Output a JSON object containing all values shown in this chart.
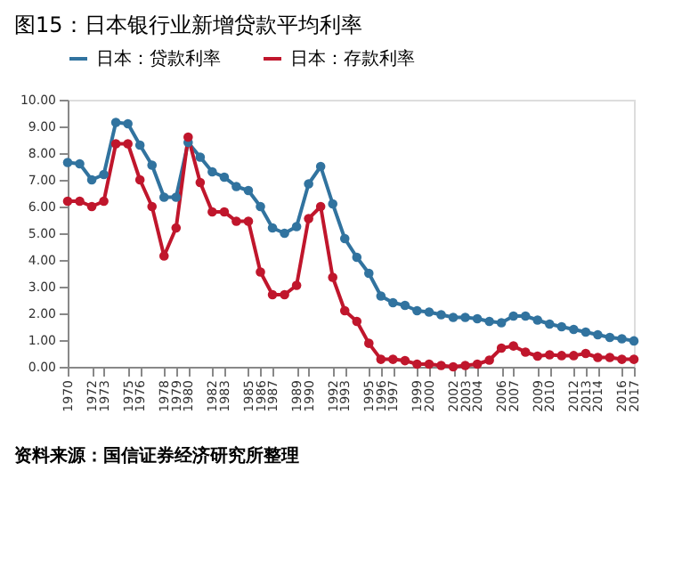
{
  "chart_data": {
    "type": "line",
    "title": "图15：日本银行业新增贷款平均利率",
    "x": [
      1970,
      1971,
      1972,
      1973,
      1974,
      1975,
      1976,
      1977,
      1978,
      1979,
      1980,
      1981,
      1982,
      1983,
      1984,
      1985,
      1986,
      1987,
      1988,
      1989,
      1990,
      1991,
      1992,
      1993,
      1994,
      1995,
      1996,
      1997,
      1998,
      1999,
      2000,
      2001,
      2002,
      2003,
      2004,
      2005,
      2006,
      2007,
      2008,
      2009,
      2010,
      2011,
      2012,
      2013,
      2014,
      2015,
      2016,
      2017
    ],
    "series": [
      {
        "name": "日本：贷款利率",
        "color": "#31739f",
        "values": [
          7.65,
          7.6,
          7.0,
          7.2,
          9.15,
          9.1,
          8.3,
          7.55,
          6.35,
          6.35,
          8.4,
          7.85,
          7.3,
          7.1,
          6.75,
          6.6,
          6.0,
          5.2,
          5.0,
          5.25,
          6.85,
          7.5,
          6.1,
          4.8,
          4.1,
          3.5,
          2.65,
          2.4,
          2.3,
          2.1,
          2.05,
          1.95,
          1.85,
          1.85,
          1.8,
          1.7,
          1.65,
          1.9,
          1.9,
          1.75,
          1.6,
          1.5,
          1.4,
          1.3,
          1.2,
          1.1,
          1.05,
          0.97
        ]
      },
      {
        "name": "日本：存款利率",
        "color": "#c0162c",
        "values": [
          6.2,
          6.2,
          6.0,
          6.2,
          8.35,
          8.35,
          7.0,
          6.0,
          4.15,
          5.2,
          8.6,
          6.9,
          5.8,
          5.8,
          5.45,
          5.45,
          3.55,
          2.7,
          2.7,
          3.05,
          5.55,
          6.0,
          3.35,
          2.1,
          1.7,
          0.88,
          0.28,
          0.28,
          0.23,
          0.1,
          0.1,
          0.05,
          0.0,
          0.05,
          0.1,
          0.25,
          0.7,
          0.78,
          0.55,
          0.4,
          0.45,
          0.42,
          0.42,
          0.5,
          0.35,
          0.35,
          0.28,
          0.28
        ]
      }
    ],
    "xlim": [
      1970,
      2017
    ],
    "xticks": [
      1970,
      1972,
      1973,
      1975,
      1976,
      1978,
      1979,
      1980,
      1982,
      1983,
      1985,
      1986,
      1987,
      1989,
      1990,
      1992,
      1993,
      1995,
      1996,
      1997,
      1999,
      2000,
      2002,
      2003,
      2004,
      2006,
      2007,
      2009,
      2010,
      2012,
      2013,
      2014,
      2016,
      2017
    ],
    "ylim": [
      0,
      10
    ],
    "yticks": [
      {
        "value": 0,
        "label": "0.00"
      },
      {
        "value": 1,
        "label": "1.00"
      },
      {
        "value": 2,
        "label": "2.00"
      },
      {
        "value": 3,
        "label": "3.00"
      },
      {
        "value": 4,
        "label": "4.00"
      },
      {
        "value": 5,
        "label": "5.00"
      },
      {
        "value": 6,
        "label": "6.00"
      },
      {
        "value": 7,
        "label": "7.00"
      },
      {
        "value": 8,
        "label": "8.00"
      },
      {
        "value": 9,
        "label": "9.00"
      },
      {
        "value": 10,
        "label": "10.00"
      }
    ],
    "grid": false,
    "legend": "top",
    "marker": "circle",
    "line_style": "solid",
    "annotations": [
      "资料来源：国信证券经济研究所整理"
    ]
  }
}
